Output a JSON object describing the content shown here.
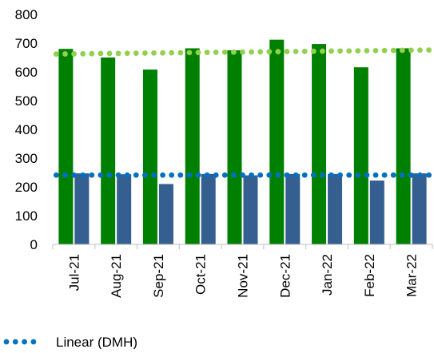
{
  "chart_data": {
    "type": "bar",
    "categories": [
      "Jul-21",
      "Aug-21",
      "Sep-21",
      "Oct-21",
      "Nov-21",
      "Dec-21",
      "Jan-22",
      "Feb-22",
      "Mar-22"
    ],
    "series": [
      {
        "values": [
          680,
          650,
          608,
          682,
          675,
          712,
          697,
          616,
          682
        ],
        "color": "#008000"
      },
      {
        "values": [
          247,
          244,
          210,
          245,
          240,
          245,
          245,
          222,
          247
        ],
        "color": "#355E91"
      }
    ],
    "trendlines": [
      {
        "name": "Linear (DMH)",
        "series_index": 1,
        "style": "dotted",
        "color": "#0070C0",
        "start": 241,
        "end": 241
      },
      {
        "series_index": 0,
        "style": "dotted",
        "color": "#92D050",
        "start": 662,
        "end": 676
      }
    ],
    "ylim": [
      0,
      800
    ],
    "yticks": [
      "0",
      "100",
      "200",
      "300",
      "400",
      "500",
      "600",
      "700",
      "800"
    ],
    "xlabel": "",
    "ylabel": "",
    "grid": false,
    "legend": {
      "position": "bottom-left",
      "entries": [
        "Linear (DMH)"
      ]
    }
  }
}
